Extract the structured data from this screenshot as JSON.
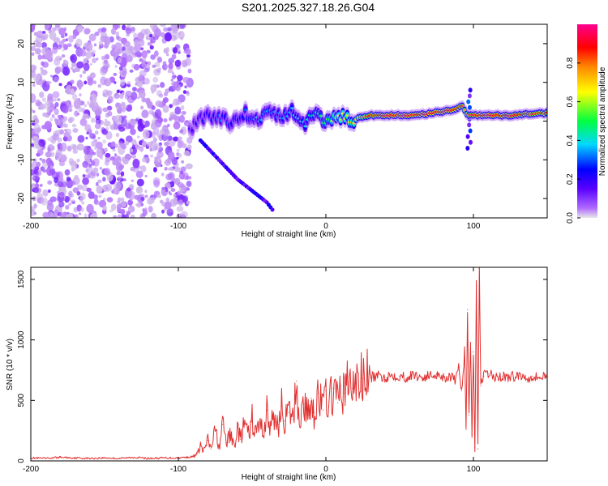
{
  "title": "S201.2025.327.18.26.G04",
  "chart_data": [
    {
      "type": "heatmap",
      "xlabel": "Height of straight line (km)",
      "ylabel": "Frequency (Hz)",
      "xlim": [
        -200,
        150
      ],
      "ylim": [
        -25,
        25
      ],
      "xticks": [
        -200,
        -100,
        0,
        100
      ],
      "xtick_labels": [
        "-200",
        "-100",
        "0",
        "100"
      ],
      "yticks": [
        -20,
        -10,
        0,
        10,
        20
      ],
      "ytick_labels": [
        "-20",
        "-10",
        "0",
        "10",
        "20"
      ],
      "colorbar": {
        "label": "Normalized spectral amplitude",
        "range": [
          0,
          1
        ],
        "ticks": [
          0.0,
          0.2,
          0.4,
          0.6,
          0.8
        ],
        "tick_labels": [
          "0.0",
          "0.2",
          "0.4",
          "0.6",
          "0.8"
        ],
        "colormap": [
          "#e0e0e0",
          "#b06bff",
          "#5a00ff",
          "#0000ff",
          "#00d8ff",
          "#00ff40",
          "#ffff00",
          "#ff8800",
          "#ff0000",
          "#ff0090"
        ]
      },
      "noise_region": {
        "x": [
          -200,
          -92
        ],
        "y": [
          -25,
          25
        ],
        "amplitude": 0.15
      },
      "ridge": {
        "x": [
          -92,
          -85,
          -75,
          -65,
          -55,
          -45,
          -38,
          -30,
          -22,
          -15,
          -8,
          0,
          10,
          20,
          30,
          40,
          50,
          60,
          70,
          80,
          88,
          92,
          96,
          100,
          110,
          120,
          130,
          140,
          150
        ],
        "y": [
          -2.5,
          0.5,
          1.5,
          -0.5,
          2.0,
          0.5,
          3.0,
          0.5,
          2.5,
          -1.0,
          1.5,
          0.0,
          1.0,
          0.5,
          1.5,
          1.5,
          1.5,
          1.5,
          2.0,
          2.5,
          3.0,
          4.0,
          1.5,
          1.5,
          1.5,
          1.5,
          1.5,
          2.0,
          2.0
        ],
        "amplitude": [
          0.25,
          0.3,
          0.35,
          0.35,
          0.35,
          0.4,
          0.4,
          0.4,
          0.45,
          0.45,
          0.5,
          0.55,
          0.65,
          0.7,
          0.85,
          0.9,
          0.92,
          0.9,
          0.92,
          0.9,
          0.9,
          0.85,
          0.75,
          0.9,
          0.92,
          0.9,
          0.88,
          0.85,
          0.85
        ]
      },
      "secondary_branch": {
        "x": [
          -85,
          -80,
          -75,
          -70,
          -65,
          -60,
          -55,
          -50,
          -45,
          -40,
          -35
        ],
        "y": [
          -5,
          -7,
          -9,
          -11,
          -13,
          -15,
          -16.5,
          -18,
          -19.5,
          -21,
          -23.5
        ],
        "amplitude": 0.3
      },
      "vertical_spike": {
        "x": 97,
        "y": [
          -7,
          8
        ],
        "amplitude": 0.3
      }
    },
    {
      "type": "line",
      "xlabel": "Height of straight line (km)",
      "ylabel": "SNR (10 * v/v)",
      "xlim": [
        -200,
        150
      ],
      "ylim": [
        0,
        1600
      ],
      "xticks": [
        -200,
        -100,
        0,
        100
      ],
      "xtick_labels": [
        "-200",
        "-100",
        "0",
        "100"
      ],
      "yticks": [
        0,
        500,
        1000,
        1500
      ],
      "ytick_labels": [
        "0",
        "500",
        "1000",
        "1500"
      ],
      "color": "#e03030",
      "series": [
        {
          "name": "SNR",
          "x": [
            -200,
            -190,
            -180,
            -170,
            -160,
            -150,
            -140,
            -130,
            -120,
            -110,
            -100,
            -95,
            -90,
            -87,
            -85,
            -83,
            -80,
            -78,
            -75,
            -72,
            -70,
            -67,
            -65,
            -62,
            -60,
            -58,
            -55,
            -52,
            -50,
            -48,
            -45,
            -42,
            -40,
            -38,
            -35,
            -32,
            -30,
            -28,
            -25,
            -22,
            -20,
            -18,
            -15,
            -12,
            -10,
            -8,
            -5,
            -2,
            0,
            2,
            5,
            8,
            10,
            12,
            15,
            18,
            20,
            25,
            30,
            35,
            40,
            45,
            50,
            55,
            60,
            65,
            70,
            75,
            80,
            85,
            88,
            90,
            92,
            94,
            95,
            96,
            97,
            98,
            99,
            100,
            101,
            102,
            103,
            104,
            105,
            107,
            110,
            115,
            120,
            125,
            130,
            135,
            140,
            145,
            150
          ],
          "y": [
            25,
            20,
            30,
            25,
            20,
            25,
            20,
            30,
            20,
            25,
            25,
            30,
            35,
            60,
            130,
            80,
            170,
            100,
            250,
            110,
            300,
            150,
            220,
            120,
            280,
            180,
            310,
            200,
            350,
            230,
            300,
            250,
            420,
            280,
            350,
            300,
            450,
            330,
            400,
            340,
            660,
            330,
            470,
            380,
            520,
            400,
            560,
            420,
            580,
            450,
            600,
            480,
            620,
            560,
            650,
            600,
            640,
            680,
            690,
            700,
            690,
            710,
            700,
            690,
            710,
            690,
            700,
            720,
            690,
            700,
            650,
            780,
            580,
            900,
            260,
            1250,
            380,
            980,
            220,
            900,
            110,
            1450,
            100,
            1590,
            620,
            700,
            720,
            690,
            700,
            690,
            710,
            690,
            700,
            690,
            700
          ]
        }
      ]
    }
  ]
}
